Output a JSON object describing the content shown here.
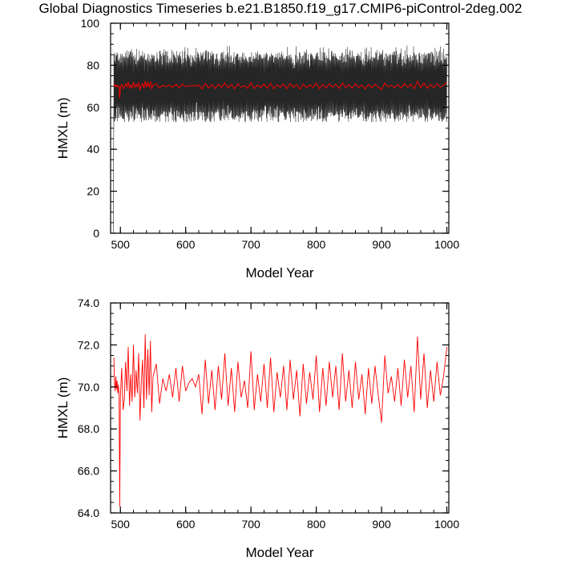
{
  "title": "Global Diagnostics Timeseries b.e21.B1850.f19_g17.CMIP6-piControl-2deg.002",
  "colors": {
    "monthly": "#000000",
    "annual": "#ff0000",
    "axis": "#000000"
  },
  "chart_data": [
    {
      "type": "line",
      "name": "monthly-and-annual",
      "xlabel": "Model Year",
      "ylabel": "HMXL (m)",
      "xlim": [
        485,
        1003
      ],
      "ylim": [
        0,
        100
      ],
      "xticks": [
        500,
        600,
        700,
        800,
        900,
        1000
      ],
      "xtick_labels": [
        "500",
        "600",
        "700",
        "800",
        "900",
        "1000"
      ],
      "yticks": [
        0,
        20,
        40,
        60,
        80,
        100
      ],
      "ytick_labels": [
        "0",
        "20",
        "40",
        "60",
        "80",
        "100"
      ],
      "series": [
        {
          "name": "monthly",
          "color": "#000000",
          "description": "monthly mean, oscillates between about 55 and 88 m; spin-up line from 0 at year 489",
          "start": [
            489,
            0
          ],
          "x_range": [
            490,
            1000
          ],
          "band_low": 55,
          "band_high": 88,
          "mean": 70
        },
        {
          "name": "annual",
          "color": "#ff0000",
          "description": "annual mean near 70 m"
        }
      ]
    },
    {
      "type": "line",
      "name": "annual-zoom",
      "xlabel": "Model Year",
      "ylabel": "HMXL (m)",
      "xlim": [
        485,
        1003
      ],
      "ylim": [
        64,
        74
      ],
      "xticks": [
        500,
        600,
        700,
        800,
        900,
        1000
      ],
      "xtick_labels": [
        "500",
        "600",
        "700",
        "800",
        "900",
        "1000"
      ],
      "yticks": [
        64,
        66,
        68,
        70,
        72,
        74
      ],
      "ytick_labels": [
        "64.0",
        "66.0",
        "68.0",
        "70.0",
        "72.0",
        "74.0"
      ],
      "series": [
        {
          "name": "annual",
          "color": "#ff0000",
          "x": [
            490,
            491,
            492,
            493,
            494,
            495,
            496,
            497,
            498,
            499,
            500,
            502,
            504,
            506,
            508,
            510,
            512,
            514,
            516,
            518,
            520,
            522,
            524,
            526,
            528,
            530,
            532,
            534,
            536,
            538,
            540,
            542,
            544,
            546,
            548,
            550,
            555,
            560,
            565,
            570,
            575,
            580,
            585,
            590,
            595,
            600,
            605,
            610,
            615,
            620,
            625,
            630,
            635,
            640,
            645,
            650,
            655,
            660,
            665,
            670,
            675,
            680,
            685,
            690,
            695,
            700,
            705,
            710,
            715,
            720,
            725,
            730,
            735,
            740,
            745,
            750,
            755,
            760,
            765,
            770,
            775,
            780,
            785,
            790,
            795,
            800,
            805,
            810,
            815,
            820,
            825,
            830,
            835,
            840,
            845,
            850,
            855,
            860,
            865,
            870,
            875,
            880,
            885,
            890,
            895,
            900,
            905,
            910,
            915,
            920,
            925,
            930,
            935,
            940,
            945,
            950,
            955,
            960,
            965,
            970,
            975,
            980,
            985,
            990,
            995,
            1000
          ],
          "y": [
            71.4,
            70.2,
            69.8,
            70.5,
            69.9,
            70.3,
            69.7,
            70.1,
            69.6,
            64.3,
            69.5,
            70.9,
            68.9,
            69.4,
            71.2,
            69.8,
            71.9,
            69.1,
            70.6,
            69.3,
            72.0,
            69.5,
            70.8,
            69.7,
            71.6,
            68.4,
            70.2,
            71.3,
            69.0,
            72.5,
            69.4,
            71.8,
            69.6,
            72.2,
            68.8,
            70.5,
            71.1,
            69.2,
            70.4,
            69.8,
            70.6,
            69.5,
            70.9,
            69.3,
            71.0,
            69.8,
            70.2,
            70.4,
            70.0,
            70.6,
            68.7,
            71.3,
            69.2,
            70.8,
            68.9,
            71.0,
            69.4,
            71.6,
            69.1,
            70.9,
            68.8,
            71.2,
            69.5,
            70.3,
            69.0,
            71.7,
            68.9,
            70.6,
            69.3,
            71.1,
            69.0,
            71.4,
            68.8,
            70.7,
            69.5,
            71.0,
            68.9,
            71.3,
            69.4,
            70.8,
            68.6,
            71.1,
            69.2,
            70.7,
            69.4,
            71.5,
            68.8,
            70.9,
            69.1,
            71.2,
            69.5,
            71.0,
            68.9,
            71.6,
            69.3,
            70.8,
            69.0,
            71.2,
            69.4,
            70.6,
            68.7,
            70.9,
            69.2,
            71.0,
            69.6,
            68.3,
            71.5,
            69.7,
            70.5,
            69.3,
            70.9,
            69.1,
            71.3,
            69.5,
            71.0,
            68.8,
            72.4,
            69.4,
            71.6,
            69.0,
            70.8,
            69.3,
            71.2,
            69.6,
            70.5,
            71.9
          ]
        }
      ]
    }
  ]
}
